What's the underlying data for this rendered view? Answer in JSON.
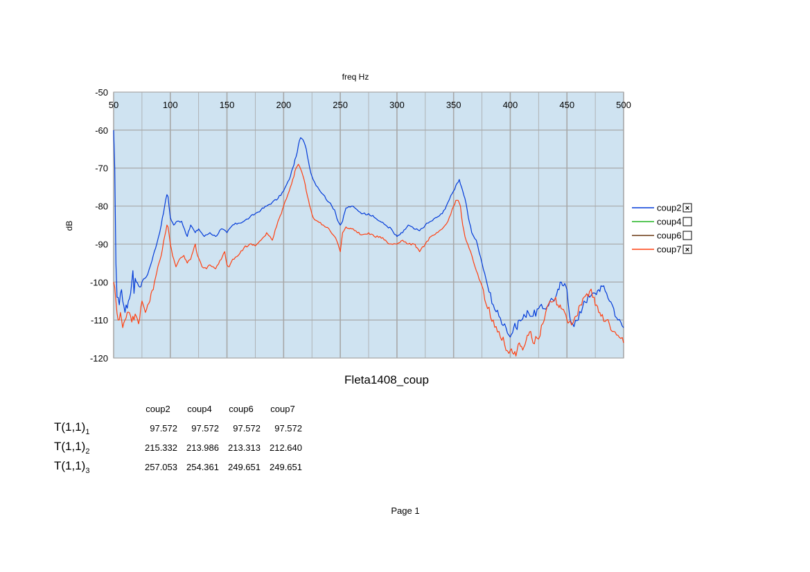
{
  "chart_data": {
    "type": "line",
    "title": "Fleta1408_coup",
    "xlabel": "freq Hz",
    "ylabel": "dB",
    "xlim": [
      50,
      500
    ],
    "ylim": [
      -120,
      -50
    ],
    "x_ticks": [
      50,
      100,
      150,
      200,
      250,
      300,
      350,
      400,
      450,
      500
    ],
    "y_ticks": [
      -50,
      -60,
      -70,
      -80,
      -90,
      -100,
      -110,
      -120
    ],
    "x_axis_position": "top",
    "grid": true,
    "plot_background": "#cfe3f1",
    "legend_position": "right",
    "series": [
      {
        "name": "coup2",
        "checked": true,
        "color": "#0039d8",
        "x": [
          50,
          51,
          52,
          53,
          55,
          57,
          60,
          63,
          65,
          67,
          68,
          69,
          70,
          72,
          75,
          80,
          85,
          88,
          92,
          95,
          97,
          98,
          100,
          103,
          106,
          110,
          115,
          118,
          122,
          125,
          130,
          135,
          140,
          145,
          150,
          155,
          160,
          165,
          170,
          175,
          180,
          185,
          190,
          195,
          200,
          205,
          208,
          211,
          213,
          215,
          217,
          220,
          223,
          226,
          230,
          235,
          240,
          245,
          248,
          250,
          252,
          255,
          260,
          265,
          270,
          275,
          280,
          285,
          290,
          295,
          298,
          300,
          305,
          310,
          315,
          320,
          325,
          330,
          335,
          340,
          345,
          350,
          353,
          355,
          357,
          360,
          363,
          366,
          370,
          375,
          380,
          385,
          390,
          395,
          400,
          403,
          405,
          408,
          410,
          413,
          415,
          420,
          425,
          430,
          435,
          440,
          443,
          445,
          447,
          450,
          452,
          455,
          460,
          465,
          470,
          475,
          478,
          480,
          485,
          490,
          495,
          500
        ],
        "values": [
          -60,
          -70,
          -95,
          -104,
          -106,
          -102,
          -108,
          -105,
          -103,
          -97,
          -103,
          -99,
          -100,
          -101,
          -100,
          -98,
          -93,
          -90,
          -85,
          -80,
          -77,
          -77.5,
          -83,
          -85,
          -84,
          -84,
          -88,
          -85,
          -87,
          -86,
          -88,
          -87,
          -88,
          -86,
          -87,
          -85,
          -84.5,
          -84,
          -83,
          -82,
          -81,
          -80,
          -79,
          -78,
          -76,
          -73,
          -70,
          -67,
          -64,
          -62,
          -62.5,
          -65,
          -70,
          -73,
          -75,
          -77,
          -79,
          -81,
          -84,
          -85,
          -84,
          -80.5,
          -80,
          -81,
          -82,
          -82,
          -83,
          -84,
          -85,
          -86,
          -87.5,
          -88,
          -87,
          -85,
          -86,
          -86.5,
          -85,
          -84,
          -83,
          -82,
          -79,
          -76,
          -74,
          -73,
          -75,
          -78,
          -83,
          -87,
          -89,
          -95,
          -101,
          -106,
          -109,
          -111,
          -114.5,
          -112,
          -112,
          -110,
          -110,
          -109,
          -107.5,
          -109,
          -107,
          -107,
          -105,
          -104,
          -102,
          -100,
          -101,
          -102,
          -108,
          -111,
          -110,
          -105,
          -104,
          -103,
          -102,
          -101,
          -103,
          -106,
          -110,
          -112
        ]
      },
      {
        "name": "coup4",
        "checked": false,
        "color": "#1fb21f",
        "x": [],
        "values": []
      },
      {
        "name": "coup6",
        "checked": false,
        "color": "#6b3a14",
        "x": [],
        "values": []
      },
      {
        "name": "coup7",
        "checked": true,
        "color": "#ff3f0f",
        "x": [
          50,
          52,
          54,
          56,
          58,
          60,
          62,
          65,
          68,
          70,
          72,
          75,
          78,
          80,
          83,
          86,
          89,
          92,
          95,
          97,
          98,
          100,
          102,
          105,
          108,
          112,
          115,
          118,
          120,
          122,
          124,
          128,
          132,
          135,
          138,
          140,
          145,
          148,
          150,
          152,
          155,
          160,
          165,
          170,
          175,
          180,
          183,
          185,
          188,
          190,
          195,
          198,
          200,
          205,
          208,
          211,
          213,
          214,
          216,
          218,
          220,
          223,
          226,
          230,
          235,
          240,
          245,
          248,
          250,
          252,
          255,
          258,
          260,
          265,
          270,
          275,
          280,
          285,
          290,
          293,
          295,
          300,
          305,
          310,
          315,
          318,
          320,
          325,
          330,
          335,
          340,
          345,
          350,
          352,
          354,
          356,
          358,
          360,
          365,
          370,
          375,
          380,
          385,
          390,
          395,
          400,
          403,
          406,
          408,
          410,
          413,
          415,
          418,
          420,
          425,
          430,
          435,
          440,
          442,
          445,
          448,
          450,
          452,
          455,
          458,
          462,
          465,
          470,
          474,
          476,
          478,
          480,
          485,
          490,
          495,
          500
        ],
        "values": [
          -100,
          -105,
          -110,
          -108,
          -112,
          -110,
          -108,
          -109,
          -110,
          -109,
          -111,
          -105,
          -108,
          -106,
          -103,
          -100,
          -96,
          -93,
          -88,
          -85,
          -85.5,
          -90,
          -93,
          -96,
          -94,
          -93,
          -95,
          -94,
          -92,
          -90,
          -93,
          -96,
          -96.5,
          -95.5,
          -96,
          -96.5,
          -94,
          -92,
          -95.5,
          -96,
          -94,
          -93,
          -91,
          -90,
          -90.5,
          -89,
          -88,
          -87,
          -88,
          -89,
          -84,
          -82,
          -80,
          -76,
          -73,
          -70,
          -69,
          -69.5,
          -71,
          -73,
          -76,
          -80,
          -83,
          -84,
          -85,
          -86,
          -88,
          -90,
          -92,
          -87,
          -85.5,
          -86,
          -86,
          -87,
          -87.5,
          -87,
          -88,
          -88,
          -89,
          -90,
          -90,
          -90,
          -89,
          -90,
          -90,
          -91,
          -92,
          -90,
          -88,
          -87,
          -86,
          -84,
          -80,
          -78.5,
          -78.5,
          -80,
          -85,
          -88,
          -92,
          -97,
          -101,
          -107,
          -110,
          -113,
          -116.5,
          -118,
          -119,
          -118,
          -116,
          -117,
          -116.5,
          -114,
          -113,
          -116,
          -115,
          -110,
          -105,
          -104,
          -106,
          -107,
          -108,
          -110,
          -110.5,
          -111,
          -109,
          -106,
          -104,
          -102.5,
          -104,
          -106,
          -108,
          -109,
          -110,
          -113,
          -114,
          -116
        ]
      }
    ]
  },
  "results_table": {
    "columns": [
      "coup2",
      "coup4",
      "coup6",
      "coup7"
    ],
    "rows": [
      {
        "label": "T(1,1)",
        "sub": "1",
        "values": [
          "97.572",
          "97.572",
          "97.572",
          "97.572"
        ]
      },
      {
        "label": "T(1,1)",
        "sub": "2",
        "values": [
          "215.332",
          "213.986",
          "213.313",
          "212.640"
        ]
      },
      {
        "label": "T(1,1)",
        "sub": "3",
        "values": [
          "257.053",
          "254.361",
          "249.651",
          "249.651"
        ]
      }
    ]
  },
  "footer": {
    "page_label": "Page 1"
  }
}
